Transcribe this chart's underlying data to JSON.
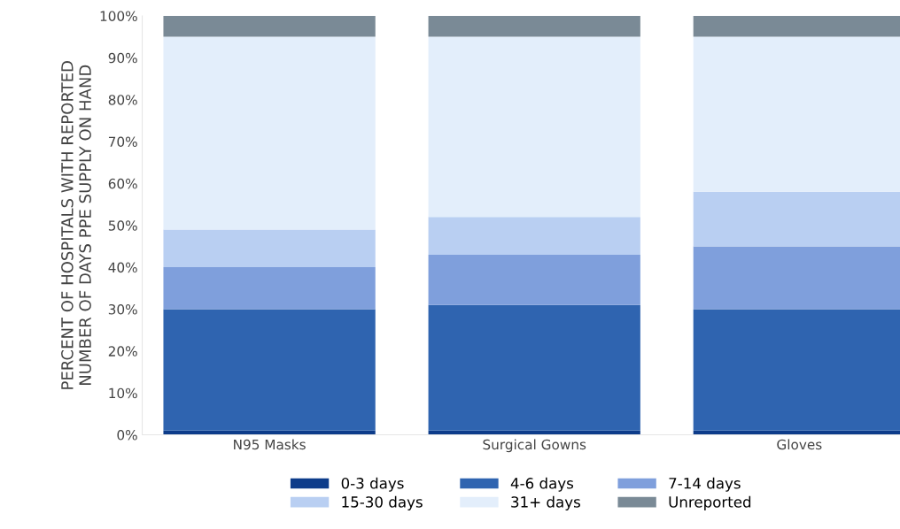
{
  "chart_data": {
    "type": "bar",
    "stacked": true,
    "ylabel": "PERCENT OF HOSPITALS WITH REPORTED\nNUMBER OF DAYS PPE SUPPLY ON HAND",
    "categories": [
      "N95 Masks",
      "Surgical Gowns",
      "Gloves"
    ],
    "series": [
      {
        "name": "0-3 days",
        "color": "#0d3c8a",
        "values": [
          1,
          1,
          1
        ]
      },
      {
        "name": "4-6 days",
        "color": "#2f64b0",
        "values": [
          29,
          30,
          29
        ]
      },
      {
        "name": "7-14 days",
        "color": "#7f9fdc",
        "values": [
          10,
          12,
          15
        ]
      },
      {
        "name": "15-30 days",
        "color": "#b9cff2",
        "values": [
          9,
          9,
          13
        ]
      },
      {
        "name": "31+ days",
        "color": "#e3eefb",
        "values": [
          46,
          43,
          37
        ]
      },
      {
        "name": "Unreported",
        "color": "#7a8a96",
        "values": [
          5,
          5,
          5
        ]
      }
    ],
    "ylim": [
      0,
      100
    ],
    "yticks": [
      {
        "value": 0,
        "label": "0%"
      },
      {
        "value": 10,
        "label": "10%"
      },
      {
        "value": 20,
        "label": "20%"
      },
      {
        "value": 30,
        "label": "30%"
      },
      {
        "value": 40,
        "label": "40%"
      },
      {
        "value": 50,
        "label": "50%"
      },
      {
        "value": 60,
        "label": "60%"
      },
      {
        "value": 70,
        "label": "70%"
      },
      {
        "value": 80,
        "label": "80%"
      },
      {
        "value": 90,
        "label": "90%"
      },
      {
        "value": 100,
        "label": "100%"
      }
    ],
    "legend": "bottom",
    "grid": false
  }
}
